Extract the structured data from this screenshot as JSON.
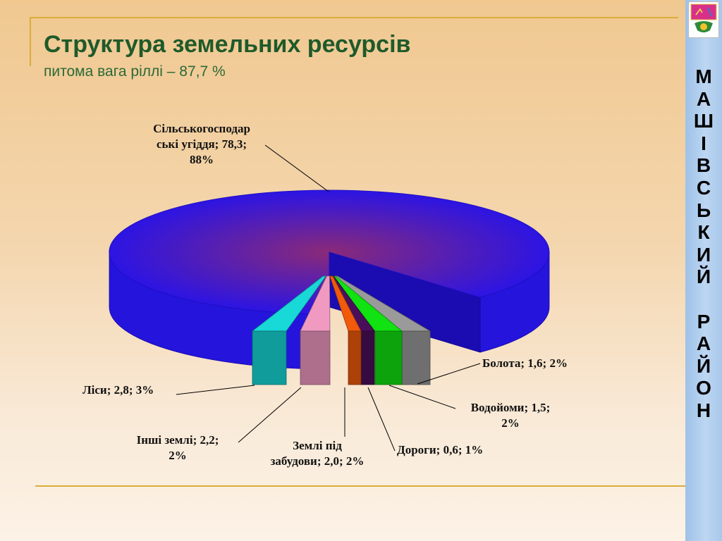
{
  "slide": {
    "title": "Структура земельних ресурсів",
    "subtitle": "питома вага ріллі – 87,7 %",
    "sidebar_letters": [
      "М",
      "А",
      "Ш",
      "І",
      "В",
      "С",
      "Ь",
      "К",
      "И",
      "Й",
      "",
      "Р",
      "А",
      "Й",
      "О",
      "Н"
    ],
    "emblem": "district-coat-of-arms-icon",
    "colors": {
      "title": "#1f5a2a",
      "accent_line": "#d9ad3a",
      "sidebar": "#aecbed"
    }
  },
  "chart_data": {
    "type": "pie",
    "style": "3d-exploded",
    "slices": [
      {
        "name": "Сільськогосподарські угіддя",
        "value": 78.3,
        "percent": 88,
        "color": "#1d10e6",
        "label_lines": [
          "Сільськогосподар",
          "ські угіддя;  78,3;",
          "88%"
        ]
      },
      {
        "name": "Болота",
        "value": 1.6,
        "percent": 2,
        "color": "#9a9a9a",
        "label_lines": [
          "Болота; 1,6; 2%"
        ]
      },
      {
        "name": "Водойоми",
        "value": 1.5,
        "percent": 2,
        "color": "#11e211",
        "label_lines": [
          "Водойоми; 1,5;",
          "2%"
        ]
      },
      {
        "name": "Дороги",
        "value": 0.6,
        "percent": 1,
        "color": "#4a0f5a",
        "label_lines": [
          "Дороги; 0,6; 1%"
        ]
      },
      {
        "name": "Землі під забудови",
        "value": 2.0,
        "percent": 2,
        "color": "#f05a0a",
        "label_lines": [
          "Землі під",
          "забудови; 2,0; 2%"
        ]
      },
      {
        "name": "Інші землі",
        "value": 2.2,
        "percent": 2,
        "color": "#f09ac2",
        "label_lines": [
          "Інші землі; 2,2;",
          "2%"
        ]
      },
      {
        "name": "Ліси",
        "value": 2.8,
        "percent": 3,
        "color": "#18d8d8",
        "label_lines": [
          "Ліси; 2,8; 3%"
        ]
      }
    ]
  }
}
